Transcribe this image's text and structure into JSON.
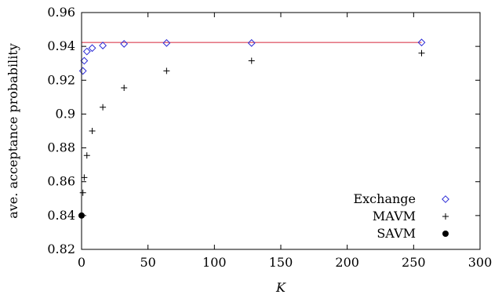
{
  "chart_data": {
    "type": "scatter",
    "title": "",
    "xlabel": "K",
    "ylabel": "ave. acceptance probability",
    "xlim": [
      0,
      300
    ],
    "ylim": [
      0.82,
      0.96
    ],
    "x_ticks": [
      0,
      50,
      100,
      150,
      200,
      250,
      300
    ],
    "y_ticks": [
      0.82,
      0.84,
      0.86,
      0.88,
      0.9,
      0.92,
      0.94,
      0.96
    ],
    "x_tick_labels": [
      "0",
      "50",
      "100",
      "150",
      "200",
      "250",
      "300"
    ],
    "y_tick_labels": [
      "0.82",
      "0.84",
      "0.86",
      "0.88",
      "0.9",
      "0.92",
      "0.94",
      "0.96"
    ],
    "grid": false,
    "legend_position": "bottom-right",
    "series": [
      {
        "name": "Exchange",
        "marker": "diamond",
        "color": "#2b2bd6",
        "x": [
          1,
          2,
          4,
          8,
          16,
          32,
          64,
          128,
          256
        ],
        "y": [
          0.9255,
          0.9315,
          0.937,
          0.939,
          0.9405,
          0.9415,
          0.942,
          0.942,
          0.9423
        ]
      },
      {
        "name": "MAVM",
        "marker": "plus",
        "color": "#000000",
        "x": [
          1,
          2,
          4,
          8,
          16,
          32,
          64,
          128,
          256
        ],
        "y": [
          0.8535,
          0.8625,
          0.8755,
          0.89,
          0.904,
          0.9155,
          0.9255,
          0.9315,
          0.936
        ]
      },
      {
        "name": "SAVM",
        "marker": "filled-circle",
        "color": "#000000",
        "x": [
          0
        ],
        "y": [
          0.84
        ]
      }
    ],
    "reference_line": {
      "y": 0.9423,
      "x_range": [
        0,
        256
      ],
      "color": "#e06070"
    }
  }
}
